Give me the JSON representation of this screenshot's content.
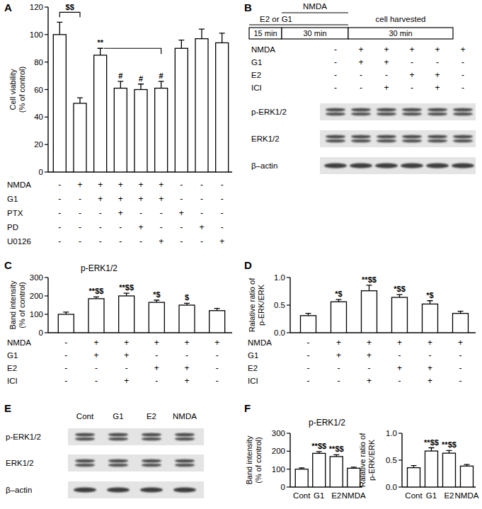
{
  "chart_data": [
    {
      "panel": "A",
      "type": "bar",
      "color": "#ffffff",
      "grid": false,
      "y_label": [
        "Cell viability",
        "(% of control)"
      ],
      "ylim": [
        0,
        120
      ],
      "yticks": [
        0,
        20,
        40,
        60,
        80,
        100,
        120
      ],
      "values": [
        100,
        50,
        85,
        61,
        60,
        61,
        90,
        97,
        94
      ],
      "errors": [
        9,
        4,
        5,
        5,
        4,
        5,
        6,
        7,
        7
      ],
      "bar_marks": [
        null,
        null,
        "**",
        "#",
        "#",
        "#",
        null,
        null,
        null
      ],
      "brackets": [
        {
          "text": "$$",
          "from": 0,
          "to": 1
        },
        {
          "from": 2,
          "to": 5
        }
      ],
      "conditions": [
        {
          "label": "NMDA",
          "signs": [
            "-",
            "+",
            "+",
            "+",
            "+",
            "+",
            "-",
            "-",
            "-"
          ]
        },
        {
          "label": "G1",
          "signs": [
            "-",
            "-",
            "+",
            "+",
            "+",
            "+",
            "-",
            "-",
            "-"
          ]
        },
        {
          "label": "PTX",
          "signs": [
            "-",
            "-",
            "-",
            "+",
            "-",
            "-",
            "+",
            "-",
            "-"
          ]
        },
        {
          "label": "PD",
          "signs": [
            "-",
            "-",
            "-",
            "-",
            "+",
            "-",
            "-",
            "+",
            "-"
          ]
        },
        {
          "label": "U0126",
          "signs": [
            "-",
            "-",
            "-",
            "-",
            "-",
            "+",
            "-",
            "-",
            "+"
          ]
        }
      ]
    },
    {
      "panel": "C",
      "type": "bar",
      "color": "#ffffff",
      "grid": false,
      "title": "p-ERK1/2",
      "y_label": [
        "Band intensity",
        "(% of control)"
      ],
      "ylim": [
        0,
        300
      ],
      "yticks": [
        0,
        100,
        200,
        300
      ],
      "values": [
        100,
        185,
        200,
        165,
        150,
        120
      ],
      "errors": [
        12,
        10,
        15,
        12,
        10,
        12
      ],
      "bar_marks": [
        null,
        "**$$",
        "**$$",
        "*$",
        "$",
        null
      ],
      "conditions": [
        {
          "label": "NMDA",
          "signs": [
            "-",
            "+",
            "+",
            "+",
            "+",
            "+"
          ]
        },
        {
          "label": "G1",
          "signs": [
            "-",
            "+",
            "+",
            "-",
            "-",
            "-"
          ]
        },
        {
          "label": "E2",
          "signs": [
            "-",
            "-",
            "-",
            "+",
            "+",
            "-"
          ]
        },
        {
          "label": "ICI",
          "signs": [
            "-",
            "-",
            "+",
            "-",
            "+",
            "-"
          ]
        }
      ]
    },
    {
      "panel": "D",
      "type": "bar",
      "color": "#ffffff",
      "grid": false,
      "y_label": [
        "Ralative ratio of",
        "p-ERK/ERK"
      ],
      "ylim": [
        0,
        1
      ],
      "yticks": [
        {
          "value": 0,
          "label": "0.0"
        },
        {
          "value": 0.5,
          "label": "0.5"
        },
        {
          "value": 1,
          "label": "1.0"
        }
      ],
      "values": [
        0.31,
        0.56,
        0.76,
        0.64,
        0.52,
        0.35
      ],
      "errors": [
        0.04,
        0.04,
        0.1,
        0.05,
        0.06,
        0.04
      ],
      "bar_marks": [
        null,
        "*$",
        "**$$",
        "*$$",
        "*$",
        null
      ],
      "conditions": [
        {
          "label": "NMDA",
          "signs": [
            "-",
            "+",
            "+",
            "+",
            "+",
            "+"
          ]
        },
        {
          "label": "G1",
          "signs": [
            "-",
            "+",
            "+",
            "-",
            "-",
            "-"
          ]
        },
        {
          "label": "E2",
          "signs": [
            "-",
            "-",
            "-",
            "+",
            "+",
            "-"
          ]
        },
        {
          "label": "ICI",
          "signs": [
            "-",
            "-",
            "+",
            "-",
            "+",
            "-"
          ]
        }
      ]
    },
    {
      "panel": "F",
      "type": "bar",
      "color": "#ffffff",
      "grid": false,
      "title": "p-ERK1/2",
      "y_label": [
        "Band intensity",
        "(% of control)"
      ],
      "categories": [
        "Cont",
        "G1",
        "E2",
        "NMDA"
      ],
      "ylim": [
        0,
        300
      ],
      "yticks": [
        0,
        100,
        200,
        300
      ],
      "values": [
        100,
        188,
        170,
        105
      ],
      "errors": [
        7,
        10,
        10,
        6
      ],
      "bar_marks": [
        null,
        "**$$",
        "**$$",
        null
      ]
    },
    {
      "type": "bar",
      "color": "#ffffff",
      "grid": false,
      "y_label": [
        "Ralative ratio of",
        "p-ERK/ERK"
      ],
      "categories": [
        "Cont",
        "G1",
        "E2",
        "NMDA"
      ],
      "ylim": [
        0,
        1
      ],
      "yticks": [
        {
          "value": 0,
          "label": "0.0"
        },
        {
          "value": 0.5,
          "label": "0.5"
        },
        {
          "value": 1,
          "label": "1.0"
        }
      ],
      "values": [
        0.36,
        0.67,
        0.63,
        0.39
      ],
      "errors": [
        0.04,
        0.06,
        0.05,
        0.03
      ],
      "bar_marks": [
        null,
        "**$$",
        "**$$",
        null
      ]
    }
  ],
  "blots": [
    {
      "panel": "B",
      "timeline": {
        "top": "NMDA",
        "left": "E2 or G1",
        "segments": [
          "15 min",
          "30 min",
          "30 min"
        ],
        "harvest": "cell harvested"
      },
      "conditions": [
        {
          "label": "NMDA",
          "signs": [
            "-",
            "+",
            "+",
            "+",
            "+",
            "+"
          ]
        },
        {
          "label": "G1",
          "signs": [
            "-",
            "+",
            "+",
            "-",
            "-",
            "-"
          ]
        },
        {
          "label": "E2",
          "signs": [
            "-",
            "-",
            "-",
            "+",
            "+",
            "-"
          ]
        },
        {
          "label": "ICI",
          "signs": [
            "-",
            "-",
            "+",
            "-",
            "+",
            "-"
          ]
        }
      ],
      "rows": [
        "p-ERK1/2",
        "ERK1/2",
        "β–actin"
      ]
    },
    {
      "panel": "E",
      "lanes": [
        "Cont",
        "G1",
        "E2",
        "NMDA"
      ],
      "rows": [
        "p-ERK1/2",
        "ERK1/2",
        "β–actin"
      ]
    }
  ]
}
